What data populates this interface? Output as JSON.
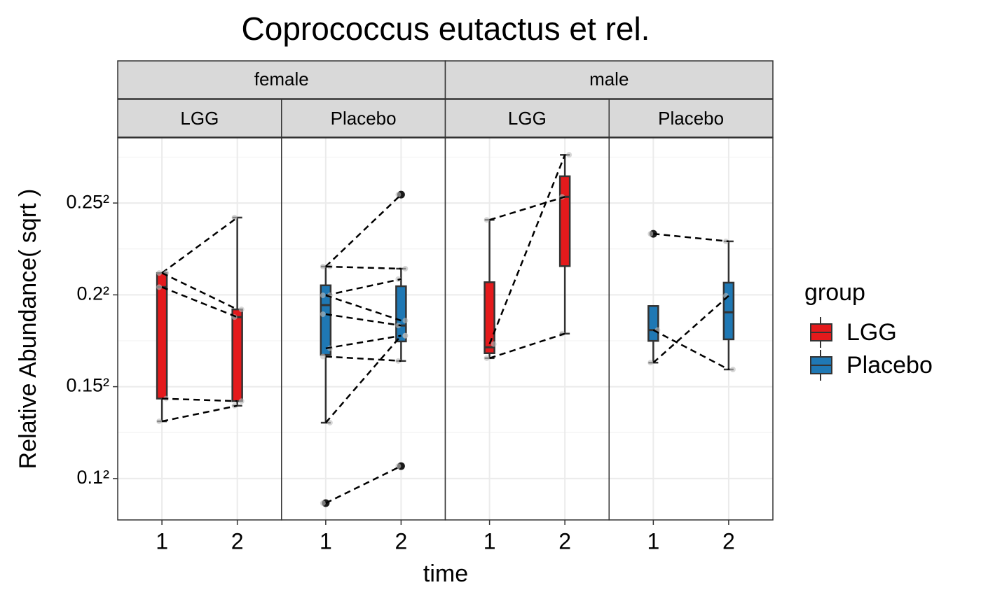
{
  "chart_data": {
    "type": "boxplot",
    "title": "Coprococcus eutactus et rel.",
    "x_label": "time",
    "y_label": "Relative Abundance( sqrt )",
    "yscale": "sqrt",
    "grid": true,
    "ylim": [
      0.006,
      0.0815
    ],
    "yticks": [
      {
        "value": 0.01,
        "label": "0.1²"
      },
      {
        "value": 0.0225,
        "label": "0.15²"
      },
      {
        "value": 0.04,
        "label": "0.2²"
      },
      {
        "value": 0.0625,
        "label": "0.25²"
      }
    ],
    "categories": [
      "1",
      "2"
    ],
    "legend_title": "group",
    "groups": [
      {
        "name": "LGG",
        "color": "#e41a1c"
      },
      {
        "name": "Placebo",
        "color": "#1f78b4"
      }
    ],
    "facets": [
      {
        "label": "female",
        "panels": [
          {
            "label": "LGG",
            "boxes": [
              {
                "stats": [
                  0.0172,
                  0.0206,
                  0.0417,
                  0.0449,
                  0.0449
                ],
                "outliers": []
              },
              {
                "stats": [
                  0.0195,
                  0.0202,
                  0.0353,
                  0.0369,
                  0.0586
                ],
                "outliers": []
              }
            ],
            "pairs": [
              [
                0.0449,
                0.0586
              ],
              [
                0.0449,
                0.0369
              ],
              [
                0.0417,
                0.0353
              ],
              [
                0.0206,
                0.0202
              ],
              [
                0.0172,
                0.0195
              ]
            ]
          },
          {
            "label": "Placebo",
            "boxes": [
              {
                "stats": [
                  0.017,
                  0.028,
                  0.0378,
                  0.0421,
                  0.0464
                ],
                "outliers": [
                  0.0075
                ]
              },
              {
                "stats": [
                  0.0269,
                  0.0305,
                  0.0336,
                  0.0419,
                  0.0459
                ],
                "outliers": [
                  0.0648,
                  0.0114
                ]
              }
            ],
            "pairs": [
              [
                0.0464,
                0.0648
              ],
              [
                0.0464,
                0.0459
              ],
              [
                0.0399,
                0.0435
              ],
              [
                0.0399,
                0.0346
              ],
              [
                0.0359,
                0.0336
              ],
              [
                0.0292,
                0.0316
              ],
              [
                0.0277,
                0.0269
              ],
              [
                0.017,
                0.0316
              ],
              [
                0.0075,
                0.0114
              ]
            ]
          }
        ]
      },
      {
        "label": "male",
        "panels": [
          {
            "label": "LGG",
            "boxes": [
              {
                "stats": [
                  0.0274,
                  0.0283,
                  0.0294,
                  0.0428,
                  0.058
                ],
                "outliers": []
              },
              {
                "stats": [
                  0.032,
                  0.0465,
                  0.0642,
                  0.07,
                  0.0763
                ],
                "outliers": []
              }
            ],
            "pairs": [
              [
                0.058,
                0.0642
              ],
              [
                0.03,
                0.0763
              ],
              [
                0.0274,
                0.032
              ]
            ]
          },
          {
            "label": "Placebo",
            "boxes": [
              {
                "stats": [
                  0.0266,
                  0.0306,
                  0.0327,
                  0.0376,
                  0.0376
                ],
                "outliers": [
                  0.0544
                ]
              },
              {
                "stats": [
                  0.0254,
                  0.0309,
                  0.0363,
                  0.0427,
                  0.0525
                ],
                "outliers": []
              }
            ],
            "pairs": [
              [
                0.0544,
                0.0525
              ],
              [
                0.0327,
                0.0254
              ],
              [
                0.0266,
                0.0398
              ]
            ]
          }
        ]
      }
    ]
  }
}
